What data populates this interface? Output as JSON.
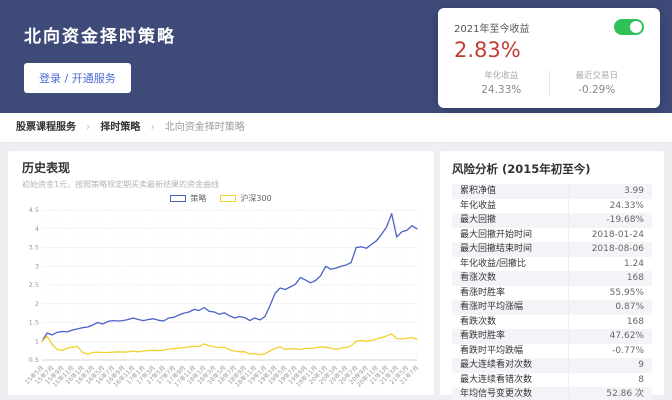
{
  "colors": {
    "header_bg": "#3e4a78",
    "accent_red": "#c13c33",
    "toggle_green": "#2fc25b",
    "line_blue": "#4a62c4",
    "line_yellow": "#f2d12e",
    "link_blue": "#4a6cd4"
  },
  "header": {
    "title": "北向资金择时策略",
    "login_button": "登录 / 开通服务"
  },
  "summary_card": {
    "label": "2021年至今收益",
    "value": "2.83%",
    "toggle_on": true,
    "stats": [
      {
        "label": "年化收益",
        "value": "24.33%"
      },
      {
        "label": "最近交易日",
        "value": "-0.29%"
      }
    ]
  },
  "breadcrumb": {
    "items": [
      "股票课程服务",
      "择时策略",
      "北向资金择时策略"
    ],
    "separator": "›"
  },
  "history": {
    "title": "历史表现",
    "subtitle": "初始资金1元，按照策略规定期买卖最新结果的资金曲线"
  },
  "risk": {
    "title": "风险分析 (2015年初至今)",
    "rows": [
      {
        "label": "累积净值",
        "value": "3.99"
      },
      {
        "label": "年化收益",
        "value": "24.33%"
      },
      {
        "label": "最大回撤",
        "value": "-19.68%"
      },
      {
        "label": "最大回撤开始时间",
        "value": "2018-01-24"
      },
      {
        "label": "最大回撤结束时间",
        "value": "2018-08-06"
      },
      {
        "label": "年化收益/回撤比",
        "value": "1.24"
      },
      {
        "label": "看涨次数",
        "value": "168"
      },
      {
        "label": "看涨时胜率",
        "value": "55.95%"
      },
      {
        "label": "看涨时平均涨幅",
        "value": "0.87%"
      },
      {
        "label": "看跌次数",
        "value": "168"
      },
      {
        "label": "看跌时胜率",
        "value": "47.62%"
      },
      {
        "label": "看跌时平均跌幅",
        "value": "-0.77%"
      },
      {
        "label": "最大连续看对次数",
        "value": "9"
      },
      {
        "label": "最大连续看错次数",
        "value": "8"
      },
      {
        "label": "年均信号变更次数",
        "value": "52.86 次"
      }
    ]
  },
  "chart_data": {
    "type": "line",
    "title": "历史表现",
    "ylim": [
      0.5,
      4.5
    ],
    "ytick_step": 0.5,
    "grid": true,
    "legend_position": "top-center",
    "x_tick_labels": [
      "15年5月",
      "15年7月",
      "15年9月",
      "15年11月",
      "16年1月",
      "16年3月",
      "16年5月",
      "16年7月",
      "16年9月",
      "16年11月",
      "17年1月",
      "17年3月",
      "17年5月",
      "17年7月",
      "17年9月",
      "17年11月",
      "18年1月",
      "18年3月",
      "18年5月",
      "18年7月",
      "18年9月",
      "18年11月",
      "19年1月",
      "19年3月",
      "19年5月",
      "19年7月",
      "19年9月",
      "19年11月",
      "20年1月",
      "20年3月",
      "20年5月",
      "20年7月",
      "20年9月",
      "20年11月",
      "21年1月",
      "21年3月",
      "21年5月",
      "21年7月"
    ],
    "ticks_every_n_points": 2,
    "series": [
      {
        "name": "策略",
        "color": "#4a62c4",
        "values": [
          1.0,
          1.22,
          1.17,
          1.24,
          1.26,
          1.25,
          1.3,
          1.33,
          1.36,
          1.38,
          1.43,
          1.5,
          1.46,
          1.53,
          1.55,
          1.54,
          1.55,
          1.58,
          1.62,
          1.58,
          1.55,
          1.58,
          1.6,
          1.56,
          1.54,
          1.62,
          1.64,
          1.7,
          1.75,
          1.78,
          1.85,
          1.82,
          1.9,
          1.8,
          1.78,
          1.72,
          1.76,
          1.68,
          1.62,
          1.66,
          1.63,
          1.55,
          1.62,
          1.57,
          1.66,
          1.95,
          2.28,
          2.42,
          2.38,
          2.45,
          2.52,
          2.7,
          2.63,
          2.56,
          2.62,
          2.75,
          3.0,
          2.92,
          2.95,
          3.0,
          3.03,
          3.1,
          3.5,
          3.52,
          3.48,
          3.58,
          3.68,
          3.85,
          4.05,
          4.4,
          3.78,
          3.92,
          3.96,
          4.08,
          4.0
        ]
      },
      {
        "name": "沪深300",
        "color": "#f2d12e",
        "values": [
          1.0,
          1.13,
          0.92,
          0.78,
          0.76,
          0.82,
          0.84,
          0.86,
          0.7,
          0.66,
          0.7,
          0.71,
          0.7,
          0.7,
          0.71,
          0.72,
          0.71,
          0.72,
          0.74,
          0.72,
          0.74,
          0.75,
          0.76,
          0.75,
          0.76,
          0.79,
          0.8,
          0.82,
          0.83,
          0.85,
          0.87,
          0.86,
          0.93,
          0.88,
          0.85,
          0.83,
          0.84,
          0.77,
          0.74,
          0.72,
          0.72,
          0.66,
          0.67,
          0.64,
          0.67,
          0.74,
          0.81,
          0.85,
          0.78,
          0.8,
          0.8,
          0.78,
          0.81,
          0.81,
          0.82,
          0.85,
          0.84,
          0.82,
          0.78,
          0.82,
          0.83,
          0.88,
          1.0,
          1.02,
          1.0,
          1.02,
          1.06,
          1.1,
          1.14,
          1.2,
          1.07,
          1.06,
          1.08,
          1.1,
          1.05
        ]
      }
    ]
  }
}
